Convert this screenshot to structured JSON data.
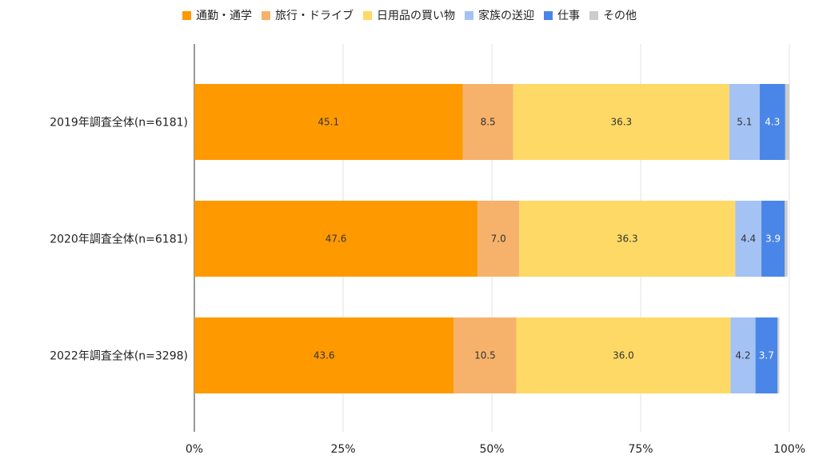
{
  "chart_data": {
    "type": "bar",
    "orientation": "horizontal",
    "stacked": true,
    "title": "",
    "xlabel": "",
    "ylabel": "",
    "xlim": [
      0,
      100
    ],
    "x_ticks": [
      "0%",
      "25%",
      "50%",
      "75%",
      "100%"
    ],
    "grid": true,
    "legend_position": "top",
    "categories": [
      "2019年調査全体(n=6181)",
      "2020年調査全体(n=6181)",
      "2022年調査全体(n=3298)"
    ],
    "series": [
      {
        "name": "通勤・通学",
        "color": "#ff9900",
        "label_color": "#333333",
        "values": [
          45.1,
          47.6,
          43.6
        ],
        "labels": [
          "45.1",
          "47.6",
          "43.6"
        ]
      },
      {
        "name": "旅行・ドライブ",
        "color": "#f6b26b",
        "label_color": "#333333",
        "values": [
          8.5,
          7.0,
          10.5
        ],
        "labels": [
          "8.5",
          "7.0",
          "10.5"
        ]
      },
      {
        "name": "日用品の買い物",
        "color": "#ffd966",
        "label_color": "#333333",
        "values": [
          36.3,
          36.3,
          36.0
        ],
        "labels": [
          "36.3",
          "36.3",
          "36.0"
        ]
      },
      {
        "name": "家族の送迎",
        "color": "#a4c2f4",
        "label_color": "#333333",
        "values": [
          5.1,
          4.4,
          4.2
        ],
        "labels": [
          "5.1",
          "4.4",
          "4.2"
        ]
      },
      {
        "name": "仕事",
        "color": "#4a86e8",
        "label_color": "#ffffff",
        "values": [
          4.3,
          3.9,
          3.7
        ],
        "labels": [
          "4.3",
          "3.9",
          "3.7"
        ]
      },
      {
        "name": "その他",
        "color": "#cccccc",
        "label_color": "#333333",
        "values": [
          0.7,
          0.5,
          0.3
        ],
        "labels": [
          "",
          "",
          ""
        ]
      }
    ]
  }
}
